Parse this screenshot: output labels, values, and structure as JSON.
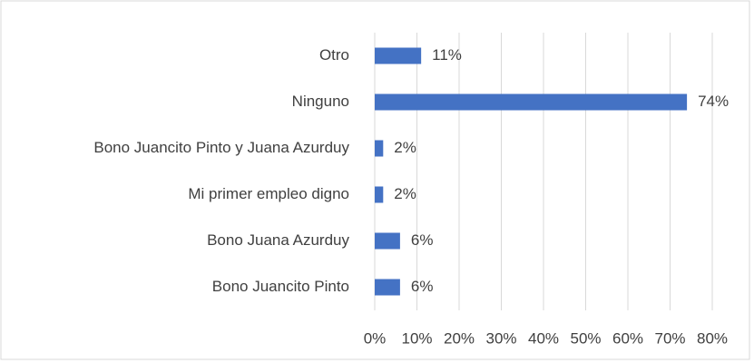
{
  "chart_data": {
    "type": "bar",
    "orientation": "horizontal",
    "categories": [
      "Otro",
      "Ninguno",
      "Bono Juancito Pinto y Juana Azurduy",
      "Mi primer empleo digno",
      "Bono Juana Azurduy",
      "Bono Juancito Pinto"
    ],
    "values": [
      11,
      74,
      2,
      2,
      6,
      6
    ],
    "value_labels": [
      "11%",
      "74%",
      "2%",
      "2%",
      "6%",
      "6%"
    ],
    "color": "#4472c4",
    "xlim": [
      0,
      80
    ],
    "xticks": [
      {
        "value": 0,
        "label": "0%"
      },
      {
        "value": 10,
        "label": "10%"
      },
      {
        "value": 20,
        "label": "20%"
      },
      {
        "value": 30,
        "label": "30%"
      },
      {
        "value": 40,
        "label": "40%"
      },
      {
        "value": 50,
        "label": "50%"
      },
      {
        "value": 60,
        "label": "60%"
      },
      {
        "value": 70,
        "label": "70%"
      },
      {
        "value": 80,
        "label": "80%"
      }
    ],
    "grid": true
  }
}
